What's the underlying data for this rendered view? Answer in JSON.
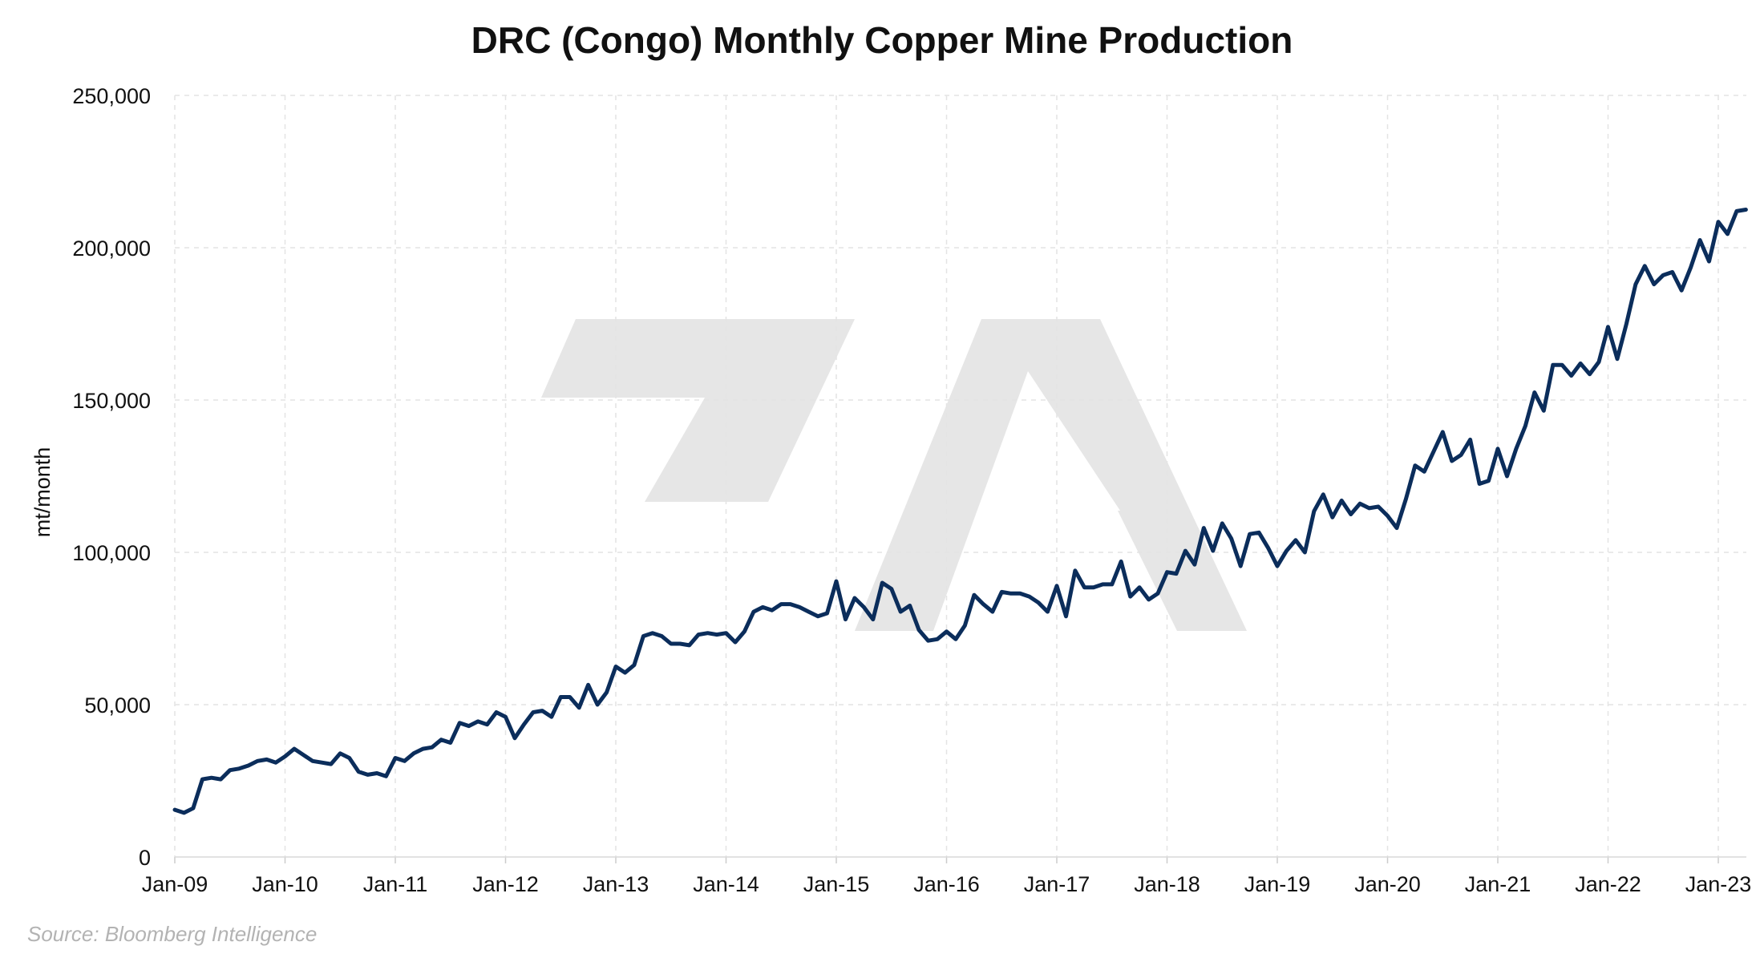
{
  "chart_data": {
    "type": "line",
    "title": "DRC (Congo) Monthly Copper Mine Production",
    "xlabel": "",
    "ylabel": "mt/month",
    "source": "Source: Bloomberg Intelligence",
    "ylim": [
      0,
      250000
    ],
    "yticks": [
      0,
      50000,
      100000,
      150000,
      200000,
      250000
    ],
    "ytick_labels": [
      "0",
      "50,000",
      "100,000",
      "150,000",
      "200,000",
      "250,000"
    ],
    "xticks": [
      "Jan-09",
      "Jan-10",
      "Jan-11",
      "Jan-12",
      "Jan-13",
      "Jan-14",
      "Jan-15",
      "Jan-16",
      "Jan-17",
      "Jan-18",
      "Jan-19",
      "Jan-20",
      "Jan-21",
      "Jan-22",
      "Jan-23"
    ],
    "x_start": "Jan-09",
    "x_end": "May-23",
    "grid": true,
    "legend": "none",
    "colors": {
      "line": "#0b2d5b",
      "grid": "#e4e4e4",
      "watermark": "#e6e6e6"
    },
    "series": [
      {
        "values": [
          15500,
          14500,
          16000,
          25500,
          26000,
          25500,
          28500,
          29000,
          30000,
          31500,
          32000,
          31000,
          33000,
          35500,
          33500,
          31500,
          31000,
          30500,
          34000,
          32500,
          28000,
          27000,
          27500,
          26500,
          32500,
          31500,
          34000,
          35500,
          36000,
          38500,
          37500,
          44000,
          43000,
          44500,
          43500,
          47500,
          46000,
          39000,
          43500,
          47500,
          48000,
          46000,
          52500,
          52500,
          49000,
          56500,
          50000,
          54000,
          62500,
          60500,
          63000,
          72500,
          73500,
          72500,
          70000,
          70000,
          69500,
          73000,
          73500,
          73000,
          73500,
          70500,
          74000,
          80500,
          82000,
          81000,
          83000,
          83000,
          82000,
          80500,
          79000,
          80000,
          90500,
          78000,
          85000,
          82000,
          78000,
          90000,
          88000,
          80500,
          82500,
          74500,
          71000,
          71500,
          74000,
          71500,
          76000,
          86000,
          83000,
          80500,
          87000,
          86500,
          86500,
          85500,
          83500,
          80500,
          89000,
          79000,
          94000,
          88500,
          88500,
          89500,
          89500,
          97000,
          85500,
          88500,
          84500,
          86500,
          93500,
          93000,
          100500,
          96000,
          108000,
          100500,
          109500,
          104500,
          95500,
          106000,
          106500,
          101500,
          95500,
          100500,
          104000,
          100000,
          113500,
          119000,
          111500,
          117000,
          112500,
          116000,
          114500,
          115000,
          112000,
          108000,
          117500,
          128500,
          126500,
          133000,
          139500,
          130000,
          132000,
          137000,
          122500,
          123500,
          134000,
          125000,
          134000,
          141500,
          152500,
          146500,
          161500,
          161500,
          158000,
          162000,
          158500,
          162500,
          174000,
          163500,
          175000,
          188000,
          194000,
          188000,
          191000,
          192000,
          186000,
          193500,
          202500,
          195500,
          208500,
          204500,
          212000,
          212500
        ]
      }
    ]
  }
}
